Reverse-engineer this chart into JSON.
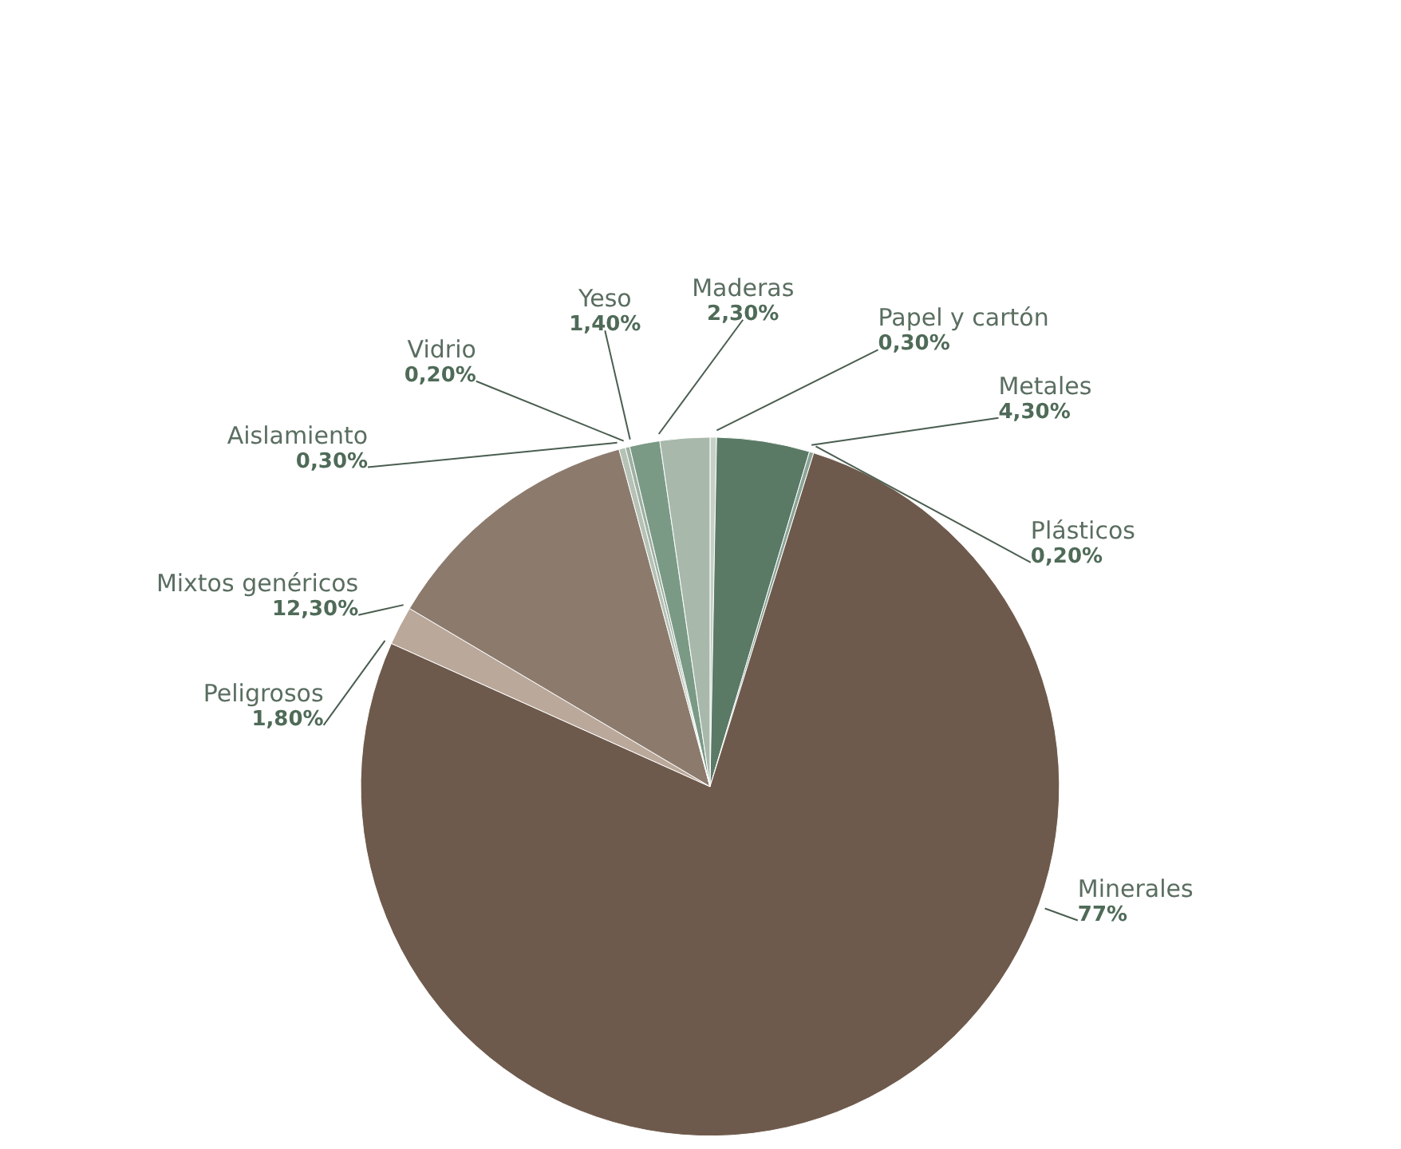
{
  "chart_data": {
    "type": "pie",
    "categories": [
      "Papel y cartón",
      "Metales",
      "Plásticos",
      "Minerales",
      "Peligrosos",
      "Mixtos genéricos",
      "Aislamiento",
      "Vidrio",
      "Yeso",
      "Maderas"
    ],
    "values": [
      0.3,
      4.3,
      0.2,
      77,
      1.8,
      12.3,
      0.3,
      0.2,
      1.4,
      2.3
    ],
    "value_labels": [
      "0,30%",
      "4,30%",
      "0,20%",
      "77%",
      "1,80%",
      "12,30%",
      "0,30%",
      "0,20%",
      "1,40%",
      "2,30%"
    ],
    "colors": [
      "#c5d0c7",
      "#5a7a66",
      "#8aa597",
      "#6e5a4c",
      "#baa89a",
      "#8c7b6d",
      "#b5c2b5",
      "#9fb0a3",
      "#7a9a86",
      "#a8b8ab"
    ]
  }
}
